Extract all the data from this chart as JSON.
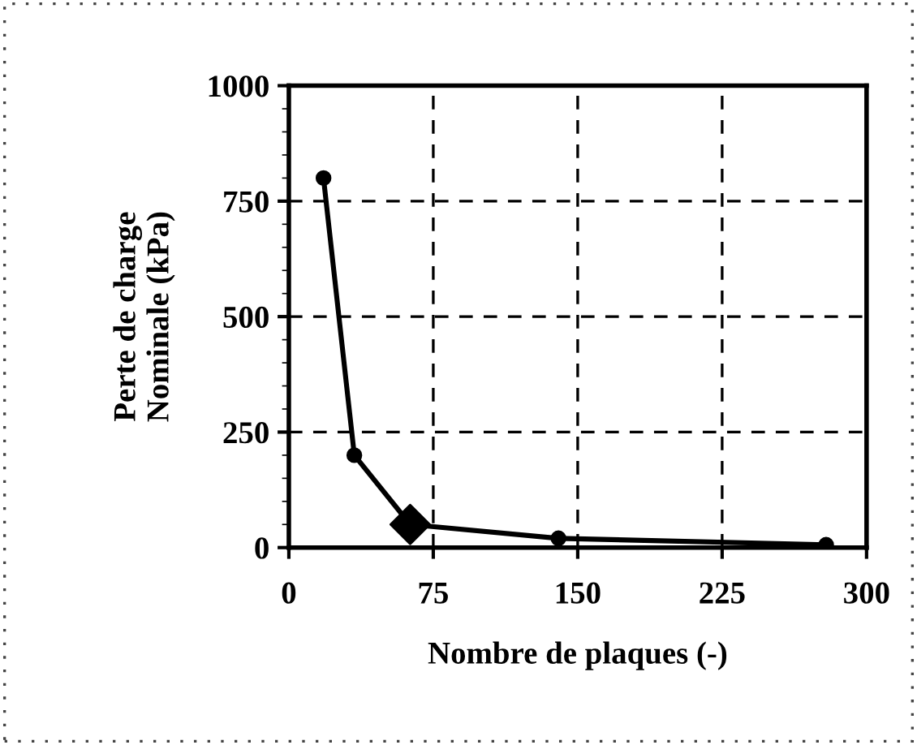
{
  "chart_data": {
    "type": "line",
    "xlabel": "Nombre de plaques (-)",
    "ylabel": "Perte de charge\nNominale (kPa)",
    "series": [
      {
        "color": "#000000",
        "x": [
          18,
          34,
          63,
          140,
          279
        ],
        "values": [
          800,
          200,
          50,
          20,
          6
        ],
        "marker": "circle",
        "line_style": "solid"
      },
      {
        "type": "scatter",
        "color": "#000000",
        "x": [
          63
        ],
        "values": [
          50
        ],
        "marker": "diamond"
      }
    ],
    "xlim": [
      0,
      300
    ],
    "xticks": [
      0,
      75,
      150,
      225,
      300
    ],
    "ylim": [
      0,
      1000
    ],
    "yticks": [
      0,
      {
        "value": 50,
        "label": null
      },
      {
        "value": 100,
        "label": null
      },
      {
        "value": 150,
        "label": null
      },
      {
        "value": 200,
        "label": null
      },
      250,
      {
        "value": 300,
        "label": null
      },
      {
        "value": 350,
        "label": null
      },
      {
        "value": 400,
        "label": null
      },
      {
        "value": 450,
        "label": null
      },
      500,
      {
        "value": 550,
        "label": null
      },
      {
        "value": 600,
        "label": null
      },
      {
        "value": 650,
        "label": null
      },
      {
        "value": 700,
        "label": null
      },
      750,
      {
        "value": 800,
        "label": null
      },
      {
        "value": 850,
        "label": null
      },
      {
        "value": 900,
        "label": null
      },
      {
        "value": 950,
        "label": null
      },
      1000
    ],
    "grid": true
  }
}
